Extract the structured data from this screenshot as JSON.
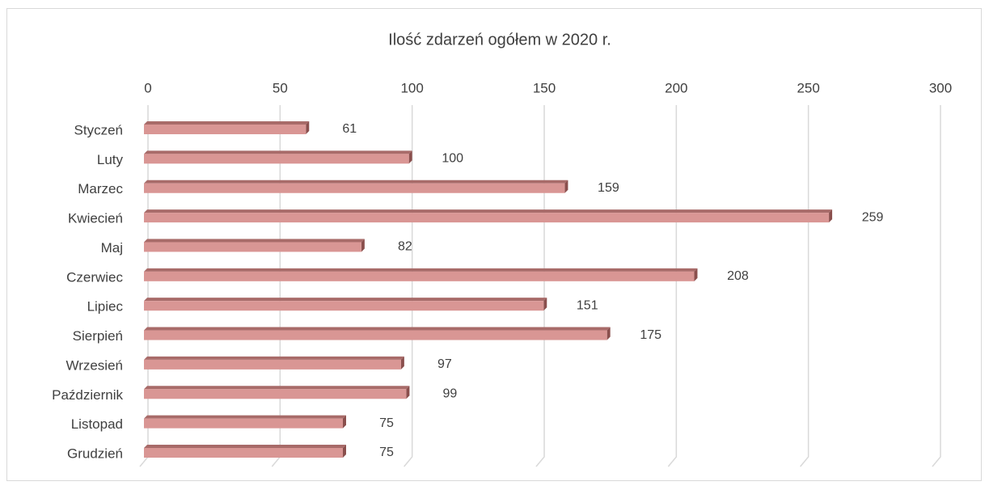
{
  "chart_data": {
    "type": "bar",
    "orientation": "horizontal",
    "title": "Ilość zdarzeń ogółem w 2020 r.",
    "categories": [
      "Styczeń",
      "Luty",
      "Marzec",
      "Kwiecień",
      "Maj",
      "Czerwiec",
      "Lipiec",
      "Sierpień",
      "Wrzesień",
      "Październik",
      "Listopad",
      "Grudzień"
    ],
    "values": [
      61,
      100,
      159,
      259,
      82,
      208,
      151,
      175,
      97,
      99,
      75,
      75
    ],
    "color": "#d99694",
    "xlim": [
      0,
      300
    ],
    "xticks": [
      0,
      50,
      100,
      150,
      200,
      250,
      300
    ],
    "grid": true
  }
}
